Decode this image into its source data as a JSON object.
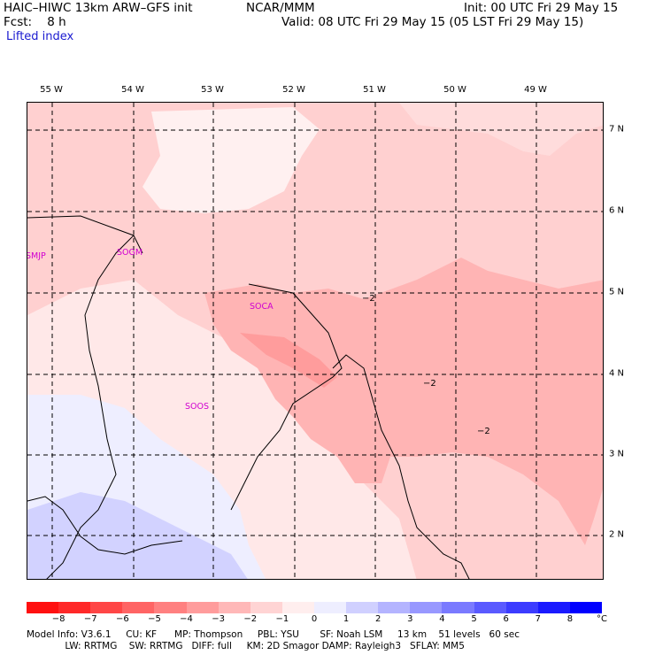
{
  "header": {
    "model": "HAIC–HIWC 13km ARW–GFS init",
    "org": "NCAR/MMM",
    "init": "Init: 00 UTC Fri 29 May 15",
    "fcst": "Fcst:    8 h",
    "valid": "Valid: 08 UTC Fri 29 May 15 (05 LST Fri 29 May 15)",
    "field": "Lifted index"
  },
  "map": {
    "lon_labels": [
      "55 W",
      "54 W",
      "53 W",
      "52 W",
      "51 W",
      "50 W",
      "49 W"
    ],
    "lat_labels": [
      "7 N",
      "6 N",
      "5 N",
      "4 N",
      "3 N",
      "2 N"
    ],
    "stations": [
      "SMJP",
      "SOGM",
      "SOCA",
      "SOOS"
    ],
    "contour_labels": [
      "−2",
      "−2",
      "−2"
    ]
  },
  "colorbar": {
    "unit": "°C",
    "tick_labels": [
      "−8",
      "−7",
      "−6",
      "−5",
      "−4",
      "−3",
      "−2",
      "−1",
      "0",
      "1",
      "2",
      "3",
      "4",
      "5",
      "6",
      "7",
      "8"
    ],
    "colors": [
      "#ff1010",
      "#ff2828",
      "#ff4646",
      "#ff6464",
      "#ff8080",
      "#ff9c9c",
      "#ffb8b8",
      "#ffd4d4",
      "#ffeeee",
      "#eeeeff",
      "#d0d0ff",
      "#b4b4ff",
      "#9898ff",
      "#7a7aff",
      "#5a5aff",
      "#3c3cff",
      "#1a1aff",
      "#0000ff"
    ]
  },
  "footer": {
    "line1": "Model Info: V3.6.1     CU: KF      MP: Thompson     PBL: YSU       SF: Noah LSM     13 km    51 levels   60 sec",
    "line2": "             LW: RRTMG    SW: RRTMG   DIFF: full     KM: 2D Smagor DAMP: Rayleigh3   SFLAY: MM5"
  }
}
